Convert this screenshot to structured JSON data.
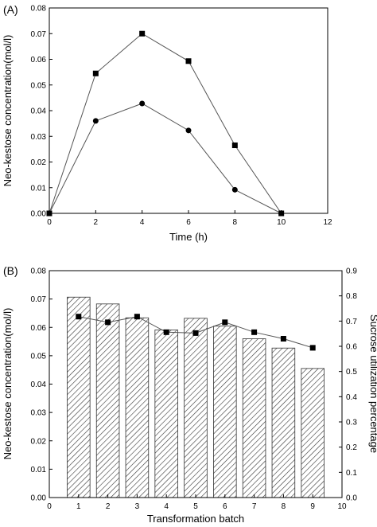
{
  "chart_data": [
    {
      "panel_label": "(A)",
      "type": "line",
      "xlabel": "Time (h)",
      "ylabel": "Neo-kestose concentration(mol/l)",
      "xlim": [
        0,
        12
      ],
      "ylim": [
        0,
        0.08
      ],
      "xticks": [
        0,
        2,
        4,
        6,
        8,
        10,
        12
      ],
      "yticks": [
        "0.00",
        "0.01",
        "0.02",
        "0.03",
        "0.04",
        "0.05",
        "0.06",
        "0.07",
        "0.08"
      ],
      "series": [
        {
          "marker": "square",
          "x": [
            0,
            2,
            4,
            6,
            8,
            10
          ],
          "values": [
            0.0,
            0.0545,
            0.07,
            0.0593,
            0.0265,
            0.0
          ]
        },
        {
          "marker": "circle",
          "x": [
            0,
            2,
            4,
            6,
            8,
            10
          ],
          "values": [
            0.0,
            0.036,
            0.0428,
            0.0323,
            0.0092,
            0.0
          ]
        }
      ],
      "grid": false
    },
    {
      "panel_label": "(B)",
      "type": "bar",
      "xlabel": "Transformation batch",
      "ylabel": "Neo-kestose concentration(mol/l)",
      "y2label": "Sucrose utilization percentage",
      "xlim": [
        0,
        10
      ],
      "ylim": [
        0,
        0.08
      ],
      "y2lim": [
        0,
        0.9
      ],
      "xticks": [
        0,
        1,
        2,
        3,
        4,
        5,
        6,
        7,
        8,
        9,
        10
      ],
      "yticks": [
        "0.00",
        "0.01",
        "0.02",
        "0.03",
        "0.04",
        "0.05",
        "0.06",
        "0.07",
        "0.08"
      ],
      "y2ticks": [
        "0.0",
        "0.1",
        "0.2",
        "0.3",
        "0.4",
        "0.5",
        "0.6",
        "0.7",
        "0.8",
        "0.9"
      ],
      "categories": [
        1,
        2,
        3,
        4,
        5,
        6,
        7,
        8,
        9
      ],
      "bars": {
        "axis": "right",
        "fill": "hatched",
        "values": [
          0.795,
          0.768,
          0.713,
          0.665,
          0.711,
          0.68,
          0.63,
          0.593,
          0.512
        ]
      },
      "line": {
        "axis": "left",
        "marker": "square",
        "values": [
          0.0638,
          0.0618,
          0.0638,
          0.0583,
          0.058,
          0.0618,
          0.0583,
          0.056,
          0.0528
        ]
      },
      "grid": false
    }
  ]
}
